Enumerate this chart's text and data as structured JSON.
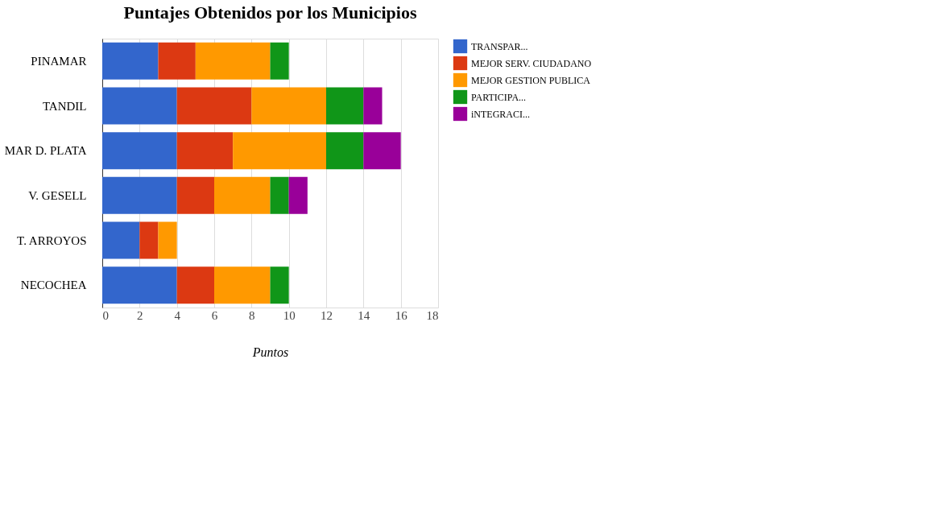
{
  "chart_data": {
    "type": "bar",
    "orientation": "horizontal",
    "stacked": true,
    "title": "Puntajes Obtenidos por los Municipios",
    "xlabel": "Puntos",
    "categories": [
      "PINAMAR",
      "TANDIL",
      "MAR D. PLATA",
      "V. GESELL",
      "T. ARROYOS",
      "NECOCHEA"
    ],
    "series": [
      {
        "name": "TRANSPAR...",
        "color": "#3366cc",
        "values": [
          3,
          4,
          4,
          4,
          2,
          4
        ]
      },
      {
        "name": "MEJOR SERV. CIUDADANO",
        "color": "#dc3912",
        "values": [
          2,
          4,
          3,
          2,
          1,
          2
        ]
      },
      {
        "name": "MEJOR GESTION PUBLICA",
        "color": "#ff9900",
        "values": [
          4,
          4,
          5,
          3,
          1,
          3
        ]
      },
      {
        "name": "PARTICIPA...",
        "color": "#109618",
        "values": [
          1,
          2,
          2,
          1,
          0,
          1
        ]
      },
      {
        "name": "iNTEGRACI...",
        "color": "#990099",
        "values": [
          0,
          1,
          2,
          1,
          0,
          0
        ]
      }
    ],
    "xlim": [
      0,
      18
    ],
    "xticks": [
      0,
      2,
      4,
      6,
      8,
      10,
      12,
      14,
      16,
      18
    ],
    "grid": "x",
    "legend": "top right"
  }
}
